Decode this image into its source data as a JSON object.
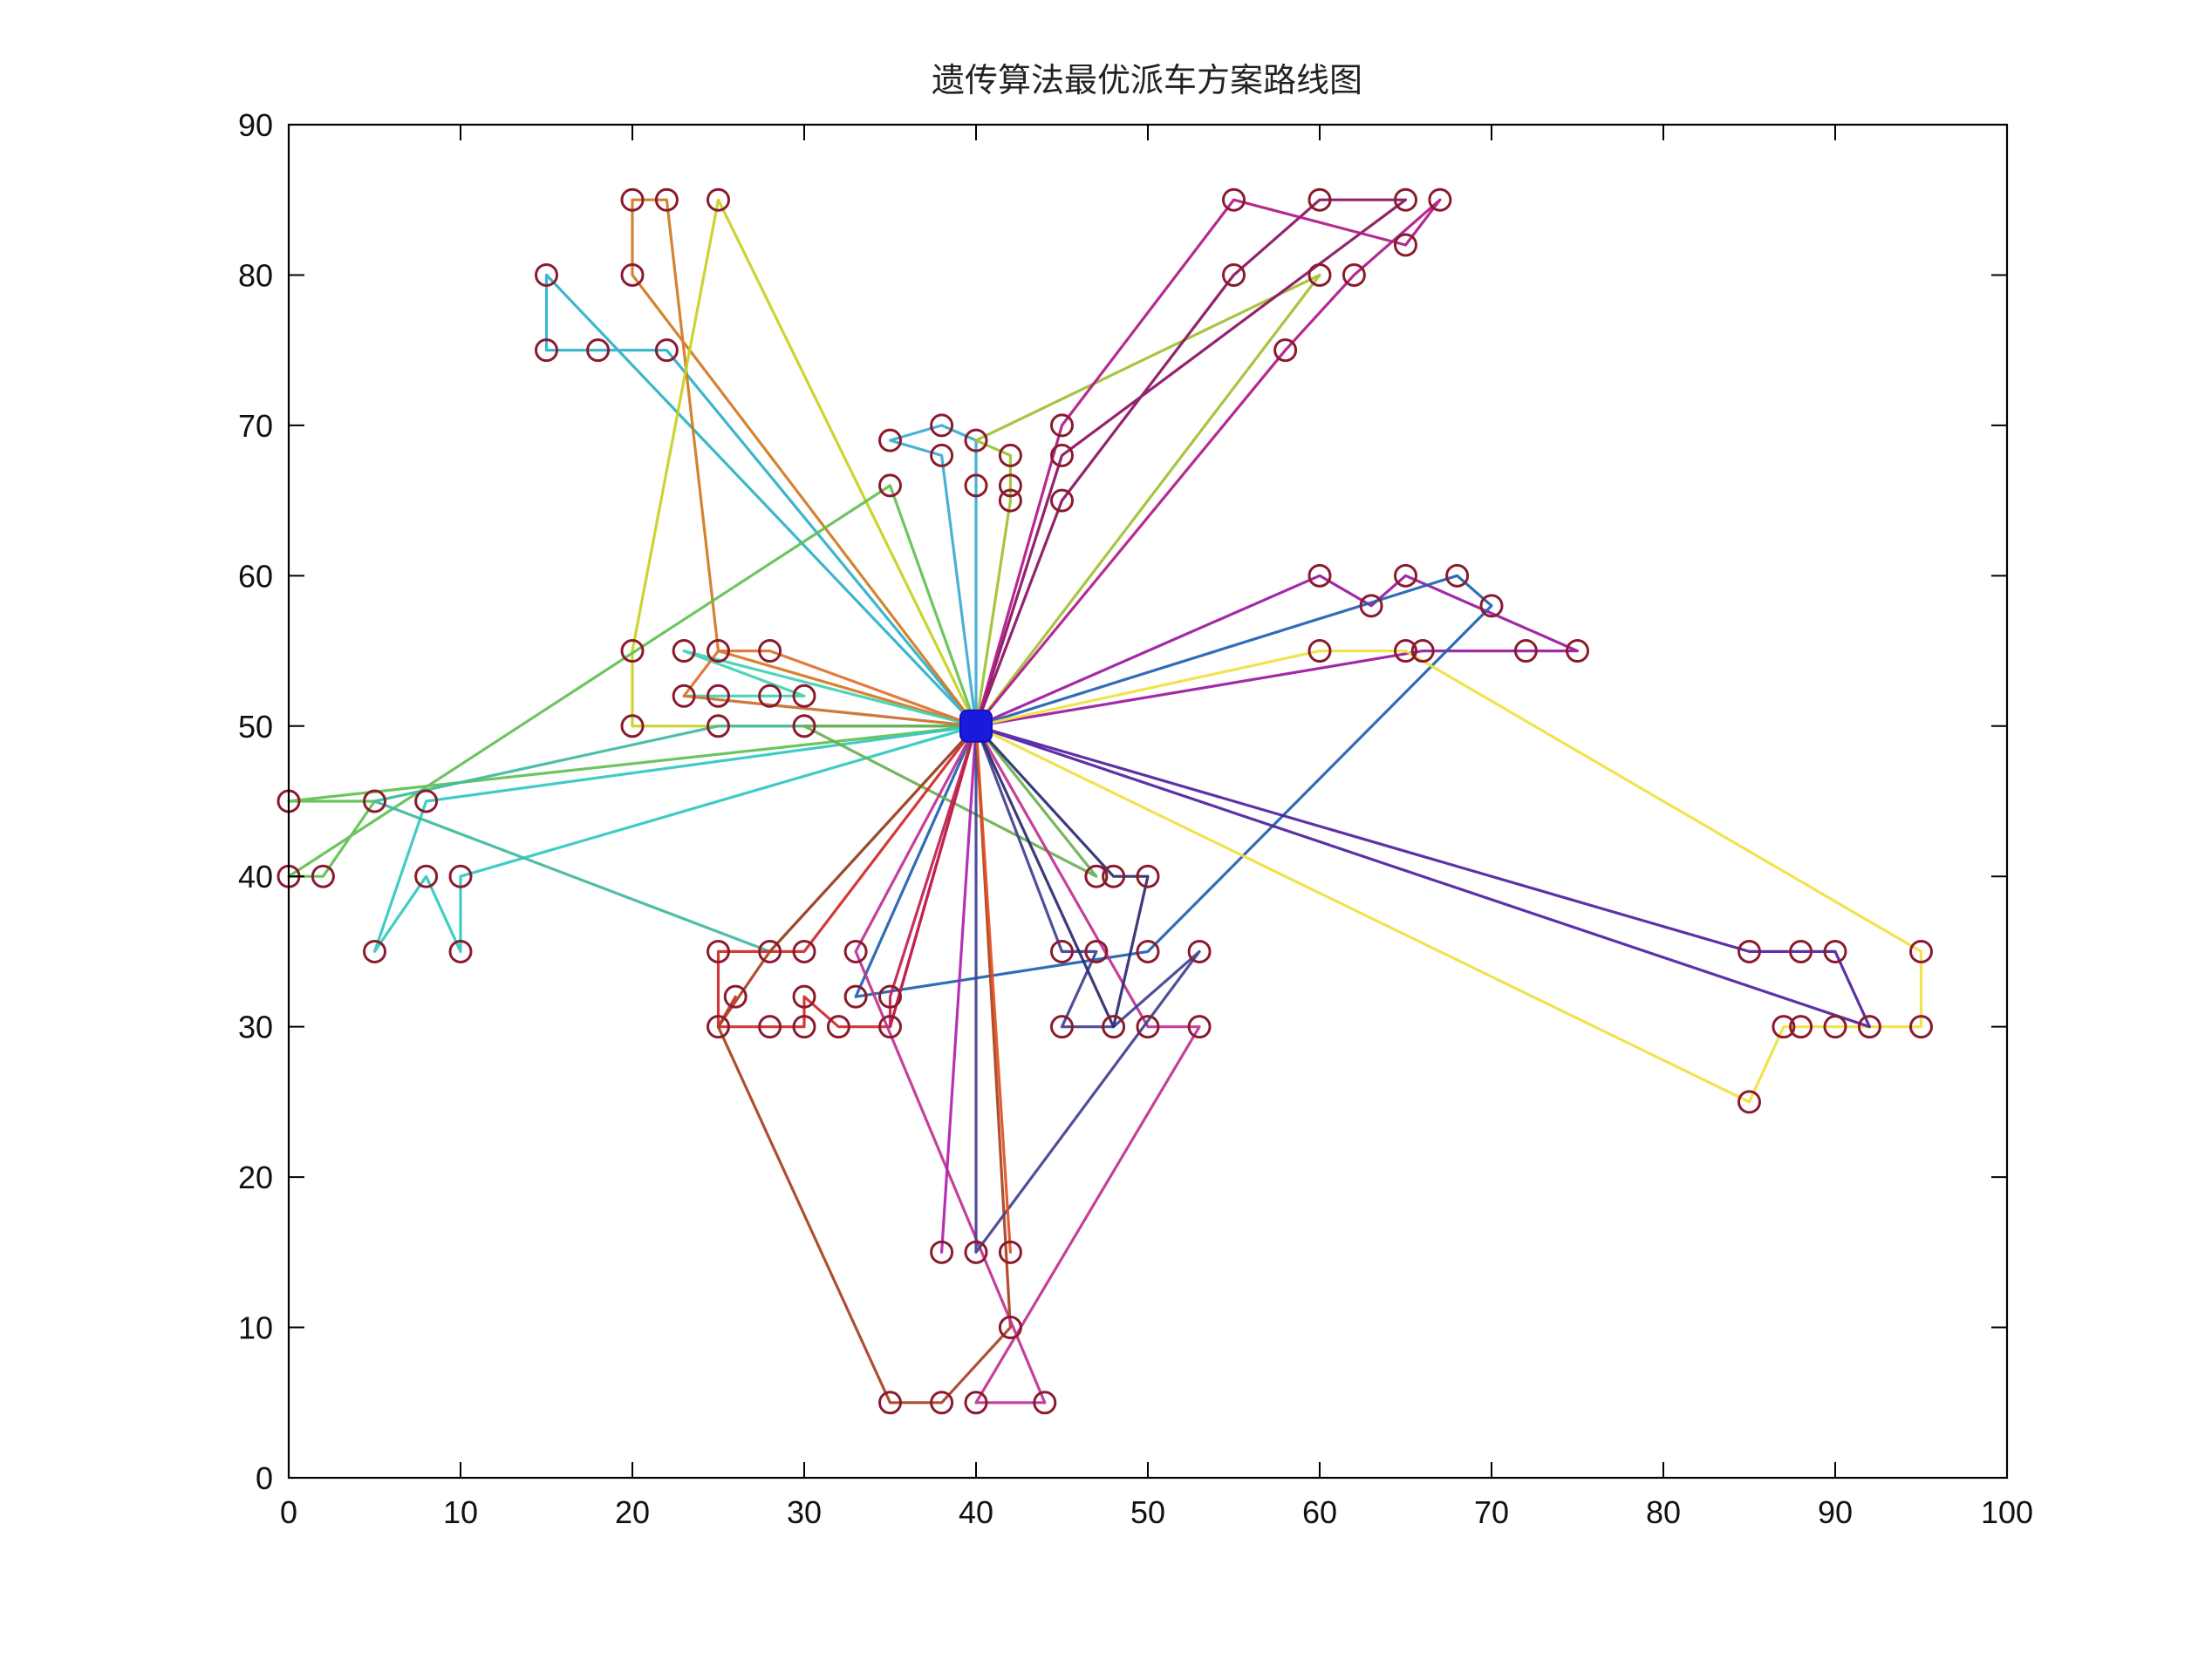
{
  "chart_data": {
    "type": "line",
    "title": "遗传算法最优派车方案路线图",
    "xlabel": "",
    "ylabel": "",
    "xlim": [
      0,
      100
    ],
    "ylim": [
      0,
      90
    ],
    "xticks": [
      0,
      10,
      20,
      30,
      40,
      50,
      60,
      70,
      80,
      90,
      100
    ],
    "yticks": [
      0,
      10,
      20,
      30,
      40,
      50,
      60,
      70,
      80,
      90
    ],
    "grid": false,
    "legend": "none",
    "depot": {
      "x": 40,
      "y": 50,
      "color": "#1a1adf"
    },
    "customer_marker_color": "#8a1b2e",
    "routes": [
      {
        "color": "#2bb0c8",
        "points": [
          [
            40,
            50
          ],
          [
            15,
            80
          ],
          [
            15,
            75
          ],
          [
            18,
            75
          ],
          [
            22,
            75
          ],
          [
            40,
            50
          ]
        ]
      },
      {
        "color": "#d07820",
        "points": [
          [
            40,
            50
          ],
          [
            20,
            80
          ],
          [
            20,
            85
          ],
          [
            22,
            85
          ],
          [
            25,
            55
          ],
          [
            40,
            50
          ]
        ]
      },
      {
        "color": "#c8d020",
        "points": [
          [
            40,
            50
          ],
          [
            25,
            85
          ],
          [
            20,
            55
          ],
          [
            20,
            50
          ],
          [
            40,
            50
          ]
        ]
      },
      {
        "color": "#3aaad0",
        "points": [
          [
            40,
            50
          ],
          [
            40,
            66
          ],
          [
            40,
            69
          ],
          [
            38,
            70
          ],
          [
            35,
            69
          ],
          [
            38,
            68
          ],
          [
            40,
            50
          ]
        ]
      },
      {
        "color": "#a0c030",
        "points": [
          [
            40,
            50
          ],
          [
            42,
            65
          ],
          [
            42,
            66
          ],
          [
            42,
            68
          ],
          [
            40,
            69
          ],
          [
            60,
            80
          ],
          [
            40,
            50
          ]
        ]
      },
      {
        "color": "#8a1060",
        "points": [
          [
            40,
            50
          ],
          [
            45,
            65
          ],
          [
            55,
            80
          ],
          [
            60,
            85
          ],
          [
            65,
            85
          ],
          [
            45,
            68
          ],
          [
            40,
            50
          ]
        ]
      },
      {
        "color": "#b01888",
        "points": [
          [
            40,
            50
          ],
          [
            45,
            70
          ],
          [
            55,
            85
          ],
          [
            65,
            82
          ],
          [
            67,
            85
          ],
          [
            62,
            80
          ],
          [
            58,
            75
          ],
          [
            40,
            50
          ]
        ]
      },
      {
        "color": "#9a18a0",
        "points": [
          [
            40,
            50
          ],
          [
            60,
            60
          ],
          [
            63,
            58
          ],
          [
            65,
            60
          ],
          [
            75,
            55
          ],
          [
            72,
            55
          ],
          [
            66,
            55
          ],
          [
            40,
            50
          ]
        ]
      },
      {
        "color": "#2060b0",
        "points": [
          [
            40,
            50
          ],
          [
            68,
            60
          ],
          [
            70,
            58
          ],
          [
            50,
            35
          ],
          [
            33,
            32
          ],
          [
            40,
            50
          ]
        ]
      },
      {
        "color": "#f0e040",
        "points": [
          [
            40,
            50
          ],
          [
            60,
            55
          ],
          [
            65,
            55
          ],
          [
            95,
            35
          ],
          [
            95,
            30
          ],
          [
            90,
            30
          ],
          [
            88,
            30
          ],
          [
            87,
            30
          ],
          [
            85,
            25
          ],
          [
            40,
            50
          ]
        ]
      },
      {
        "color": "#5020a0",
        "points": [
          [
            40,
            50
          ],
          [
            85,
            35
          ],
          [
            88,
            35
          ],
          [
            90,
            35
          ],
          [
            92,
            30
          ],
          [
            40,
            50
          ]
        ]
      },
      {
        "color": "#40d0b0",
        "points": [
          [
            40,
            50
          ],
          [
            23,
            52
          ],
          [
            25,
            52
          ],
          [
            28,
            52
          ],
          [
            30,
            52
          ],
          [
            23,
            55
          ],
          [
            40,
            50
          ]
        ]
      },
      {
        "color": "#e07030",
        "points": [
          [
            40,
            50
          ],
          [
            28,
            55
          ],
          [
            25,
            55
          ],
          [
            23,
            52
          ],
          [
            40,
            50
          ]
        ]
      },
      {
        "color": "#60c050",
        "points": [
          [
            40,
            50
          ],
          [
            35,
            66
          ],
          [
            0,
            40
          ],
          [
            2,
            40
          ],
          [
            5,
            45
          ],
          [
            0,
            45
          ],
          [
            40,
            50
          ]
        ]
      },
      {
        "color": "#30c8c0",
        "points": [
          [
            40,
            50
          ],
          [
            8,
            45
          ],
          [
            5,
            35
          ],
          [
            8,
            40
          ],
          [
            10,
            35
          ],
          [
            10,
            40
          ],
          [
            40,
            50
          ]
        ]
      },
      {
        "color": "#40b8a0",
        "points": [
          [
            40,
            50
          ],
          [
            25,
            50
          ],
          [
            5,
            45
          ],
          [
            28,
            35
          ],
          [
            40,
            50
          ]
        ]
      },
      {
        "color": "#6ab050",
        "points": [
          [
            40,
            50
          ],
          [
            47,
            40
          ],
          [
            30,
            50
          ],
          [
            40,
            50
          ]
        ]
      },
      {
        "color": "#d02828",
        "points": [
          [
            40,
            50
          ],
          [
            30,
            35
          ],
          [
            28,
            35
          ],
          [
            25,
            35
          ],
          [
            25,
            30
          ],
          [
            26,
            32
          ],
          [
            25,
            30
          ],
          [
            28,
            30
          ],
          [
            30,
            30
          ],
          [
            30,
            32
          ],
          [
            32,
            30
          ],
          [
            35,
            30
          ],
          [
            40,
            50
          ]
        ]
      },
      {
        "color": "#c02050",
        "points": [
          [
            40,
            50
          ],
          [
            35,
            32
          ],
          [
            35,
            30
          ],
          [
            40,
            50
          ]
        ]
      },
      {
        "color": "#a84020",
        "points": [
          [
            40,
            50
          ],
          [
            28,
            35
          ],
          [
            25,
            30
          ],
          [
            35,
            5
          ],
          [
            38,
            5
          ],
          [
            42,
            10
          ],
          [
            40,
            50
          ]
        ]
      },
      {
        "color": "#c03090",
        "points": [
          [
            40,
            50
          ],
          [
            33,
            35
          ],
          [
            44,
            5
          ],
          [
            40,
            5
          ],
          [
            53,
            30
          ],
          [
            50,
            30
          ],
          [
            40,
            50
          ]
        ]
      },
      {
        "color": "#b020b0",
        "points": [
          [
            40,
            50
          ],
          [
            38,
            15
          ],
          [
            40,
            50
          ]
        ]
      },
      {
        "color": "#404090",
        "points": [
          [
            40,
            50
          ],
          [
            40,
            15
          ],
          [
            53,
            35
          ],
          [
            48,
            30
          ],
          [
            45,
            30
          ],
          [
            47,
            35
          ],
          [
            45,
            35
          ],
          [
            40,
            50
          ]
        ]
      },
      {
        "color": "#e05020",
        "points": [
          [
            40,
            50
          ],
          [
            42,
            15
          ],
          [
            40,
            50
          ]
        ]
      },
      {
        "color": "#2a2a70",
        "points": [
          [
            40,
            50
          ],
          [
            48,
            40
          ],
          [
            50,
            40
          ],
          [
            48,
            30
          ],
          [
            40,
            50
          ]
        ]
      }
    ]
  }
}
